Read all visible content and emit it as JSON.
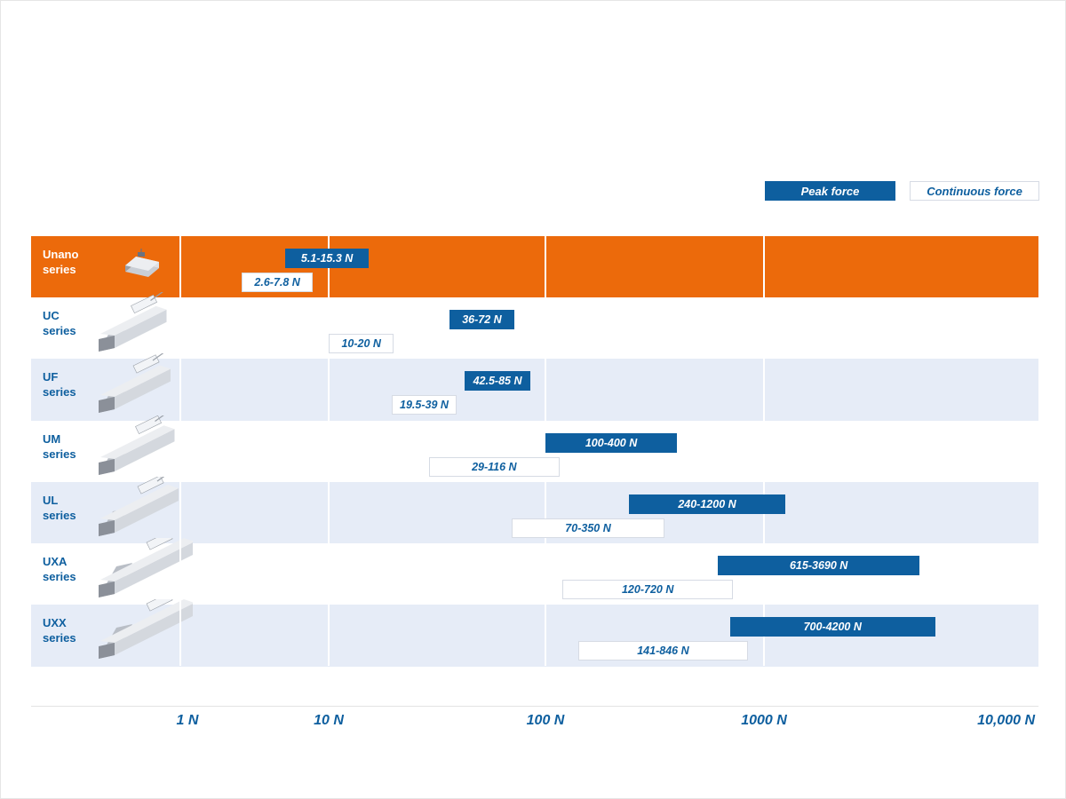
{
  "legend": {
    "peak": "Peak force",
    "continuous": "Continuous force"
  },
  "colors": {
    "peak": "#0e5f9f",
    "continuous_fill": "#ffffff",
    "highlight_row": "#ec6a0b",
    "alt_row": "#e6ecf7",
    "label_text": "#0e5f9f"
  },
  "chart_data": {
    "type": "bar",
    "orientation": "horizontal-range",
    "x_scale": "log",
    "x_unit": "N",
    "ticks": [
      {
        "value": 1,
        "label": "1 N"
      },
      {
        "value": 10,
        "label": "10 N"
      },
      {
        "value": 100,
        "label": "100 N"
      },
      {
        "value": 1000,
        "label": "1000 N"
      },
      {
        "value": 10000,
        "label": "10,000 N"
      }
    ],
    "series_names": [
      "Peak force",
      "Continuous force"
    ],
    "categories": [
      {
        "name": "Unano\nseries",
        "highlight": true,
        "icon": "unano-motor-icon",
        "peak": {
          "min": 5.1,
          "max": 15.3,
          "label": "5.1-15.3 N"
        },
        "continuous": {
          "min": 2.6,
          "max": 7.8,
          "label": "2.6-7.8 N"
        }
      },
      {
        "name": "UC\nseries",
        "icon": "uc-motor-icon",
        "peak": {
          "min": 36,
          "max": 72,
          "label": "36-72 N"
        },
        "continuous": {
          "min": 10,
          "max": 20,
          "label": "10-20 N"
        }
      },
      {
        "name": "UF\nseries",
        "icon": "uf-motor-icon",
        "peak": {
          "min": 42.5,
          "max": 85,
          "label": "42.5-85 N"
        },
        "continuous": {
          "min": 19.5,
          "max": 39,
          "label": "19.5-39 N"
        }
      },
      {
        "name": "UM\nseries",
        "icon": "um-motor-icon",
        "peak": {
          "min": 100,
          "max": 400,
          "label": "100-400 N"
        },
        "continuous": {
          "min": 29,
          "max": 116,
          "label": "29-116 N"
        }
      },
      {
        "name": "UL\nseries",
        "icon": "ul-motor-icon",
        "peak": {
          "min": 240,
          "max": 1200,
          "label": "240-1200 N"
        },
        "continuous": {
          "min": 70,
          "max": 350,
          "label": "70-350 N"
        }
      },
      {
        "name": "UXA\nseries",
        "icon": "uxa-motor-icon",
        "peak": {
          "min": 615,
          "max": 3690,
          "label": "615-3690 N"
        },
        "continuous": {
          "min": 120,
          "max": 720,
          "label": "120-720 N"
        }
      },
      {
        "name": "UXX\nseries",
        "icon": "uxx-motor-icon",
        "peak": {
          "min": 700,
          "max": 4200,
          "label": "700-4200 N"
        },
        "continuous": {
          "min": 141,
          "max": 846,
          "label": "141-846 N"
        }
      }
    ]
  }
}
